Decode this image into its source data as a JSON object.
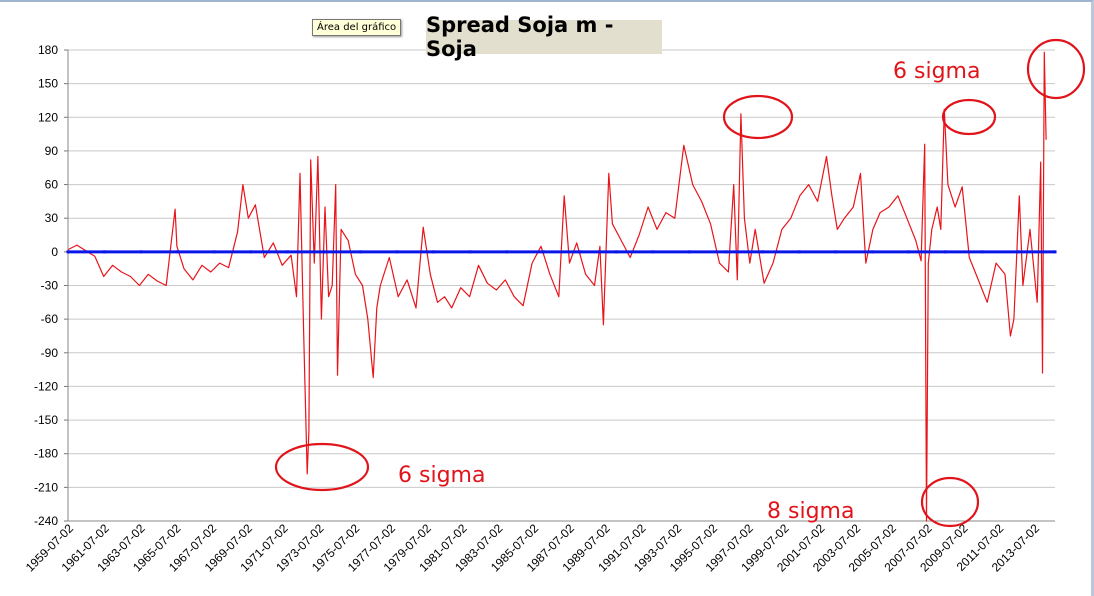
{
  "tooltip": "Área del gráfico",
  "chart_data": {
    "type": "line",
    "title": "Spread Soja m - Soja",
    "ylim": [
      -240,
      180
    ],
    "yticks": [
      180,
      150,
      120,
      90,
      60,
      30,
      0,
      -30,
      -60,
      -90,
      -120,
      -150,
      -180,
      -210,
      -240
    ],
    "x_tick_labels": [
      "1959-07-02",
      "1961-07-02",
      "1963-07-02",
      "1965-07-02",
      "1967-07-02",
      "1969-07-02",
      "1971-07-02",
      "1973-07-02",
      "1975-07-02",
      "1977-07-02",
      "1979-07-02",
      "1981-07-02",
      "1983-07-02",
      "1985-07-02",
      "1987-07-02",
      "1989-07-02",
      "1991-07-02",
      "1993-07-02",
      "1995-07-02",
      "1997-07-02",
      "1999-07-02",
      "2001-07-02",
      "2003-07-02",
      "2005-07-02",
      "2007-07-02",
      "2009-07-02",
      "2011-07-02",
      "2013-07-02"
    ],
    "xlim": [
      1959.5,
      2014.8
    ],
    "gridlines": "horizontal",
    "series": [
      {
        "name": "Spread",
        "color": "#e8141a",
        "points": [
          [
            1959.5,
            2
          ],
          [
            1960.0,
            6
          ],
          [
            1960.5,
            1
          ],
          [
            1961.0,
            -4
          ],
          [
            1961.5,
            -22
          ],
          [
            1962.0,
            -12
          ],
          [
            1962.5,
            -18
          ],
          [
            1963.0,
            -22
          ],
          [
            1963.5,
            -30
          ],
          [
            1964.0,
            -20
          ],
          [
            1964.5,
            -26
          ],
          [
            1965.0,
            -30
          ],
          [
            1965.5,
            38
          ],
          [
            1965.6,
            5
          ],
          [
            1966.0,
            -15
          ],
          [
            1966.5,
            -25
          ],
          [
            1967.0,
            -12
          ],
          [
            1967.5,
            -18
          ],
          [
            1968.0,
            -10
          ],
          [
            1968.5,
            -14
          ],
          [
            1969.0,
            18
          ],
          [
            1969.3,
            60
          ],
          [
            1969.6,
            30
          ],
          [
            1970.0,
            42
          ],
          [
            1970.5,
            -5
          ],
          [
            1971.0,
            8
          ],
          [
            1971.5,
            -12
          ],
          [
            1972.0,
            -3
          ],
          [
            1972.3,
            -40
          ],
          [
            1972.5,
            70
          ],
          [
            1972.7,
            -70
          ],
          [
            1972.9,
            -198
          ],
          [
            1973.0,
            -160
          ],
          [
            1973.1,
            82
          ],
          [
            1973.3,
            -10
          ],
          [
            1973.5,
            85
          ],
          [
            1973.7,
            -60
          ],
          [
            1973.9,
            40
          ],
          [
            1974.1,
            -40
          ],
          [
            1974.3,
            -30
          ],
          [
            1974.5,
            60
          ],
          [
            1974.6,
            -110
          ],
          [
            1974.8,
            20
          ],
          [
            1975.2,
            10
          ],
          [
            1975.6,
            -20
          ],
          [
            1976.0,
            -30
          ],
          [
            1976.3,
            -60
          ],
          [
            1976.6,
            -112
          ],
          [
            1976.8,
            -50
          ],
          [
            1977.0,
            -30
          ],
          [
            1977.5,
            -5
          ],
          [
            1978.0,
            -40
          ],
          [
            1978.5,
            -25
          ],
          [
            1979.0,
            -50
          ],
          [
            1979.4,
            22
          ],
          [
            1979.8,
            -20
          ],
          [
            1980.2,
            -45
          ],
          [
            1980.6,
            -40
          ],
          [
            1981.0,
            -50
          ],
          [
            1981.5,
            -32
          ],
          [
            1982.0,
            -40
          ],
          [
            1982.5,
            -12
          ],
          [
            1983.0,
            -28
          ],
          [
            1983.5,
            -34
          ],
          [
            1984.0,
            -25
          ],
          [
            1984.5,
            -40
          ],
          [
            1985.0,
            -48
          ],
          [
            1985.5,
            -10
          ],
          [
            1986.0,
            5
          ],
          [
            1986.5,
            -20
          ],
          [
            1987.0,
            -40
          ],
          [
            1987.3,
            50
          ],
          [
            1987.6,
            -10
          ],
          [
            1988.0,
            8
          ],
          [
            1988.5,
            -20
          ],
          [
            1989.0,
            -30
          ],
          [
            1989.3,
            5
          ],
          [
            1989.5,
            -65
          ],
          [
            1989.8,
            70
          ],
          [
            1990.0,
            25
          ],
          [
            1990.5,
            10
          ],
          [
            1991.0,
            -5
          ],
          [
            1991.5,
            15
          ],
          [
            1992.0,
            40
          ],
          [
            1992.5,
            20
          ],
          [
            1993.0,
            35
          ],
          [
            1993.5,
            30
          ],
          [
            1994.0,
            95
          ],
          [
            1994.5,
            60
          ],
          [
            1995.0,
            45
          ],
          [
            1995.5,
            25
          ],
          [
            1996.0,
            -10
          ],
          [
            1996.5,
            -18
          ],
          [
            1996.8,
            60
          ],
          [
            1997.0,
            -25
          ],
          [
            1997.2,
            123
          ],
          [
            1997.4,
            30
          ],
          [
            1997.7,
            -10
          ],
          [
            1998.0,
            20
          ],
          [
            1998.5,
            -28
          ],
          [
            1999.0,
            -10
          ],
          [
            1999.5,
            20
          ],
          [
            2000.0,
            30
          ],
          [
            2000.5,
            50
          ],
          [
            2001.0,
            60
          ],
          [
            2001.5,
            45
          ],
          [
            2002.0,
            85
          ],
          [
            2002.3,
            50
          ],
          [
            2002.6,
            20
          ],
          [
            2003.0,
            30
          ],
          [
            2003.5,
            40
          ],
          [
            2003.9,
            70
          ],
          [
            2004.2,
            -10
          ],
          [
            2004.6,
            20
          ],
          [
            2005.0,
            35
          ],
          [
            2005.5,
            40
          ],
          [
            2006.0,
            50
          ],
          [
            2006.5,
            30
          ],
          [
            2007.0,
            10
          ],
          [
            2007.3,
            -8
          ],
          [
            2007.5,
            96
          ],
          [
            2007.6,
            -240
          ],
          [
            2007.7,
            -10
          ],
          [
            2007.9,
            20
          ],
          [
            2008.2,
            40
          ],
          [
            2008.4,
            20
          ],
          [
            2008.6,
            127
          ],
          [
            2008.8,
            60
          ],
          [
            2009.2,
            40
          ],
          [
            2009.6,
            58
          ],
          [
            2010.0,
            -5
          ],
          [
            2010.5,
            -25
          ],
          [
            2011.0,
            -45
          ],
          [
            2011.5,
            -10
          ],
          [
            2012.0,
            -20
          ],
          [
            2012.3,
            -75
          ],
          [
            2012.5,
            -60
          ],
          [
            2012.8,
            50
          ],
          [
            2013.0,
            -30
          ],
          [
            2013.4,
            20
          ],
          [
            2013.8,
            -45
          ],
          [
            2014.0,
            80
          ],
          [
            2014.1,
            -108
          ],
          [
            2014.2,
            178
          ],
          [
            2014.3,
            100
          ]
        ]
      },
      {
        "name": "Zero",
        "color": "#0a16e8",
        "points": [
          [
            1959.5,
            0
          ],
          [
            2014.8,
            0
          ]
        ]
      }
    ],
    "annotations": [
      {
        "text": "6 sigma"
      },
      {
        "text": "6 sigma"
      },
      {
        "text": "8 sigma"
      }
    ]
  }
}
